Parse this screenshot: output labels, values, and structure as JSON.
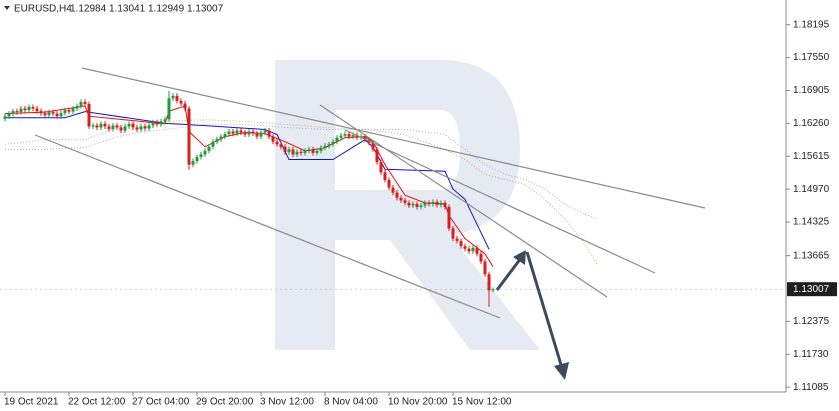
{
  "chart_data": {
    "type": "candlestick",
    "symbol": "EURUSD,H4",
    "up_color": "#1f9a3c",
    "down_color": "#d81e1e",
    "ohlc": [
      [
        1.1635,
        1.1645,
        1.163,
        1.164
      ],
      [
        1.164,
        1.165,
        1.1635,
        1.1645
      ],
      [
        1.1645,
        1.1655,
        1.164,
        1.165
      ],
      [
        1.165,
        1.1655,
        1.1643,
        1.1648
      ],
      [
        1.1648,
        1.166,
        1.1643,
        1.1655
      ],
      [
        1.1655,
        1.166,
        1.1647,
        1.1652
      ],
      [
        1.1652,
        1.1663,
        1.1647,
        1.1658
      ],
      [
        1.1658,
        1.1663,
        1.165,
        1.1655
      ],
      [
        1.1655,
        1.166,
        1.1645,
        1.165
      ],
      [
        1.165,
        1.1655,
        1.1641,
        1.1646
      ],
      [
        1.1646,
        1.1651,
        1.1637,
        1.1642
      ],
      [
        1.1642,
        1.1653,
        1.1637,
        1.1648
      ],
      [
        1.1648,
        1.1653,
        1.164,
        1.1645
      ],
      [
        1.1645,
        1.165,
        1.1635,
        1.164
      ],
      [
        1.164,
        1.1651,
        1.1635,
        1.1646
      ],
      [
        1.1646,
        1.1657,
        1.1641,
        1.1652
      ],
      [
        1.1652,
        1.1657,
        1.1644,
        1.1649
      ],
      [
        1.1649,
        1.166,
        1.1644,
        1.1655
      ],
      [
        1.1655,
        1.1665,
        1.165,
        1.166
      ],
      [
        1.166,
        1.1673,
        1.1655,
        1.1668
      ],
      [
        1.1668,
        1.1673,
        1.1659,
        1.1664
      ],
      [
        1.1664,
        1.1669,
        1.1615,
        1.162
      ],
      [
        1.162,
        1.1627,
        1.1615,
        1.1622
      ],
      [
        1.1622,
        1.1627,
        1.1613,
        1.1618
      ],
      [
        1.1618,
        1.163,
        1.1613,
        1.1625
      ],
      [
        1.1625,
        1.163,
        1.1615,
        1.162
      ],
      [
        1.162,
        1.1625,
        1.161,
        1.1615
      ],
      [
        1.1615,
        1.1627,
        1.161,
        1.1622
      ],
      [
        1.1622,
        1.1627,
        1.1613,
        1.1618
      ],
      [
        1.1618,
        1.1623,
        1.1607,
        1.1612
      ],
      [
        1.1612,
        1.1625,
        1.1607,
        1.162
      ],
      [
        1.162,
        1.163,
        1.1615,
        1.1625
      ],
      [
        1.1625,
        1.163,
        1.1613,
        1.1618
      ],
      [
        1.1618,
        1.1623,
        1.1609,
        1.1614
      ],
      [
        1.1614,
        1.1625,
        1.1609,
        1.162
      ],
      [
        1.162,
        1.1625,
        1.1611,
        1.1616
      ],
      [
        1.1616,
        1.1627,
        1.1611,
        1.1622
      ],
      [
        1.1622,
        1.1633,
        1.1617,
        1.1628
      ],
      [
        1.1628,
        1.1633,
        1.1619,
        1.1624
      ],
      [
        1.1624,
        1.1635,
        1.1619,
        1.163
      ],
      [
        1.163,
        1.1639,
        1.1625,
        1.1634
      ],
      [
        1.1634,
        1.169,
        1.1629,
        1.1675
      ],
      [
        1.1675,
        1.1685,
        1.167,
        1.168
      ],
      [
        1.168,
        1.1685,
        1.1665,
        1.167
      ],
      [
        1.167,
        1.1675,
        1.166,
        1.1665
      ],
      [
        1.1665,
        1.167,
        1.165,
        1.1655
      ],
      [
        1.1655,
        1.166,
        1.1535,
        1.1545
      ],
      [
        1.1545,
        1.1557,
        1.154,
        1.1552
      ],
      [
        1.1552,
        1.1565,
        1.1547,
        1.156
      ],
      [
        1.156,
        1.157,
        1.1555,
        1.1565
      ],
      [
        1.1565,
        1.1577,
        1.156,
        1.1572
      ],
      [
        1.1572,
        1.1585,
        1.1567,
        1.158
      ],
      [
        1.158,
        1.1595,
        1.1575,
        1.159
      ],
      [
        1.159,
        1.16,
        1.1585,
        1.1595
      ],
      [
        1.1595,
        1.1605,
        1.159,
        1.16
      ],
      [
        1.16,
        1.161,
        1.1595,
        1.1605
      ],
      [
        1.1605,
        1.1615,
        1.16,
        1.161
      ],
      [
        1.161,
        1.1615,
        1.1601,
        1.1606
      ],
      [
        1.1606,
        1.1617,
        1.1601,
        1.1612
      ],
      [
        1.1612,
        1.1617,
        1.1603,
        1.1608
      ],
      [
        1.1608,
        1.1613,
        1.1599,
        1.1604
      ],
      [
        1.1604,
        1.1615,
        1.1599,
        1.161
      ],
      [
        1.161,
        1.1615,
        1.1601,
        1.1606
      ],
      [
        1.1606,
        1.1611,
        1.1595,
        1.16
      ],
      [
        1.16,
        1.1613,
        1.1595,
        1.1608
      ],
      [
        1.1608,
        1.1617,
        1.1603,
        1.1612
      ],
      [
        1.1612,
        1.1617,
        1.1595,
        1.16
      ],
      [
        1.16,
        1.1605,
        1.1585,
        1.159
      ],
      [
        1.159,
        1.1595,
        1.158,
        1.1585
      ],
      [
        1.1585,
        1.159,
        1.1575,
        1.158
      ],
      [
        1.158,
        1.1585,
        1.1565,
        1.157
      ],
      [
        1.157,
        1.158,
        1.1565,
        1.1575
      ],
      [
        1.1575,
        1.158,
        1.156,
        1.1565
      ],
      [
        1.1565,
        1.1575,
        1.156,
        1.157
      ],
      [
        1.157,
        1.1575,
        1.1563,
        1.1568
      ],
      [
        1.1568,
        1.1577,
        1.1563,
        1.1572
      ],
      [
        1.1572,
        1.158,
        1.1567,
        1.1575
      ],
      [
        1.1575,
        1.158,
        1.1563,
        1.1568
      ],
      [
        1.1568,
        1.1577,
        1.1563,
        1.1572
      ],
      [
        1.1572,
        1.1583,
        1.1567,
        1.1578
      ],
      [
        1.1578,
        1.1587,
        1.1573,
        1.1582
      ],
      [
        1.1582,
        1.159,
        1.1577,
        1.1585
      ],
      [
        1.1585,
        1.1595,
        1.158,
        1.159
      ],
      [
        1.159,
        1.1603,
        1.1585,
        1.1598
      ],
      [
        1.1598,
        1.1607,
        1.1593,
        1.1602
      ],
      [
        1.1602,
        1.161,
        1.1597,
        1.1605
      ],
      [
        1.1605,
        1.161,
        1.1595,
        1.16
      ],
      [
        1.16,
        1.1608,
        1.1595,
        1.1603
      ],
      [
        1.1603,
        1.1608,
        1.1593,
        1.1598
      ],
      [
        1.1598,
        1.1605,
        1.1593,
        1.16
      ],
      [
        1.16,
        1.1605,
        1.1589,
        1.1594
      ],
      [
        1.1594,
        1.1599,
        1.1583,
        1.1588
      ],
      [
        1.1588,
        1.1593,
        1.157,
        1.1575
      ],
      [
        1.1575,
        1.158,
        1.1545,
        1.155
      ],
      [
        1.155,
        1.1555,
        1.1525,
        1.153
      ],
      [
        1.153,
        1.1535,
        1.151,
        1.1515
      ],
      [
        1.1515,
        1.152,
        1.1495,
        1.15
      ],
      [
        1.15,
        1.1505,
        1.1485,
        1.149
      ],
      [
        1.149,
        1.1495,
        1.1475,
        1.148
      ],
      [
        1.148,
        1.1485,
        1.147,
        1.1475
      ],
      [
        1.1475,
        1.148,
        1.1465,
        1.147
      ],
      [
        1.147,
        1.1475,
        1.146,
        1.1465
      ],
      [
        1.1465,
        1.1473,
        1.146,
        1.1468
      ],
      [
        1.1468,
        1.1473,
        1.1457,
        1.1462
      ],
      [
        1.1462,
        1.147,
        1.1457,
        1.1465
      ],
      [
        1.1465,
        1.1475,
        1.146,
        1.147
      ],
      [
        1.147,
        1.1475,
        1.1463,
        1.1468
      ],
      [
        1.1468,
        1.1477,
        1.1463,
        1.1472
      ],
      [
        1.1472,
        1.1477,
        1.1461,
        1.1466
      ],
      [
        1.1466,
        1.1475,
        1.1461,
        1.147
      ],
      [
        1.147,
        1.1475,
        1.1457,
        1.1462
      ],
      [
        1.1462,
        1.1467,
        1.1415,
        1.142
      ],
      [
        1.142,
        1.1425,
        1.1395,
        1.14
      ],
      [
        1.14,
        1.1405,
        1.139,
        1.1395
      ],
      [
        1.1395,
        1.14,
        1.138,
        1.1385
      ],
      [
        1.1385,
        1.139,
        1.1375,
        1.138
      ],
      [
        1.138,
        1.1385,
        1.137,
        1.1375
      ],
      [
        1.1375,
        1.1387,
        1.137,
        1.1382
      ],
      [
        1.1382,
        1.1387,
        1.1365,
        1.137
      ],
      [
        1.137,
        1.1375,
        1.135,
        1.1355
      ],
      [
        1.1355,
        1.136,
        1.1325,
        1.133
      ],
      [
        1.133,
        1.1335,
        1.1266,
        1.12984
      ],
      [
        1.12984,
        1.13041,
        1.12949,
        1.13007
      ]
    ],
    "series": [
      {
        "color": "#e6a070",
        "style": "dotted",
        "x": [
          0,
          10,
          20,
          30,
          40,
          50,
          60,
          70,
          80,
          90,
          100,
          110,
          115,
          120,
          125,
          130,
          135,
          140,
          145,
          148
        ],
        "values": [
          1.1585,
          1.1594,
          1.1594,
          1.1624,
          1.163,
          1.1633,
          1.163,
          1.1624,
          1.1618,
          1.1614,
          1.1604,
          1.1575,
          1.1555,
          1.1526,
          1.1516,
          1.1506,
          1.1477,
          1.1438,
          1.1389,
          1.135
        ]
      },
      {
        "color": "#b9a6e0",
        "style": "dotted",
        "x": [
          0,
          10,
          20,
          30,
          40,
          50,
          60,
          70,
          80,
          90,
          100,
          110,
          115,
          120,
          125,
          130,
          135,
          140,
          145,
          148
        ],
        "values": [
          1.1575,
          1.1575,
          1.1579,
          1.1604,
          1.1614,
          1.1624,
          1.1624,
          1.1618,
          1.1614,
          1.1614,
          1.1614,
          1.1604,
          1.1575,
          1.1545,
          1.1526,
          1.1516,
          1.1497,
          1.1467,
          1.1448,
          1.1438
        ]
      },
      {
        "color": "#1414c8",
        "style": "solid",
        "x": [
          0,
          15,
          20,
          40,
          45,
          65,
          68,
          71,
          82,
          90,
          92,
          95,
          110,
          112,
          115,
          118,
          121
        ],
        "values": [
          1.1637,
          1.1637,
          1.1649,
          1.1626,
          1.1624,
          1.1614,
          1.1604,
          1.1555,
          1.1555,
          1.1594,
          1.1579,
          1.1536,
          1.1532,
          1.1497,
          1.1477,
          1.1428,
          1.1379
        ]
      },
      {
        "color": "#e01010",
        "style": "solid",
        "x": [
          0,
          10,
          20,
          21,
          40,
          41,
          45,
          46,
          50,
          55,
          60,
          65,
          70,
          75,
          80,
          85,
          90,
          92,
          95,
          100,
          105,
          110,
          111,
          115,
          120,
          122
        ],
        "values": [
          1.1645,
          1.1648,
          1.166,
          1.164,
          1.1625,
          1.165,
          1.166,
          1.161,
          1.158,
          1.16,
          1.1608,
          1.1606,
          1.159,
          1.1572,
          1.1578,
          1.1598,
          1.16,
          1.159,
          1.1545,
          1.1485,
          1.147,
          1.1468,
          1.1445,
          1.14,
          1.137,
          1.1345
        ]
      }
    ],
    "xlim": [
      -1.25,
      195.25
    ],
    "xticks": [
      {
        "value": 0,
        "label": "19 Oct 2021"
      },
      {
        "value": 16,
        "label": "22 Oct 12:00"
      },
      {
        "value": 32,
        "label": "27 Oct 04:00"
      },
      {
        "value": 48,
        "label": "29 Oct 20:00"
      },
      {
        "value": 64,
        "label": "3 Nov 12:00"
      },
      {
        "value": 80,
        "label": "8 Nov 04:00"
      },
      {
        "value": 96,
        "label": "10 Nov 20:00"
      },
      {
        "value": 112,
        "label": "15 Nov 12:00"
      }
    ],
    "ylim": [
      1.1099,
      1.1868
    ],
    "yticks": [
      1.18195,
      {
        "value": 1.1755,
        "label": "1.17550"
      },
      1.16905,
      {
        "value": 1.1626,
        "label": "1.16260"
      },
      1.15615,
      {
        "value": 1.1497,
        "label": "1.14970"
      },
      1.14325,
      1.13665,
      1.12375,
      {
        "value": 1.1173,
        "label": "1.11730"
      },
      1.11085
    ]
  }
}
